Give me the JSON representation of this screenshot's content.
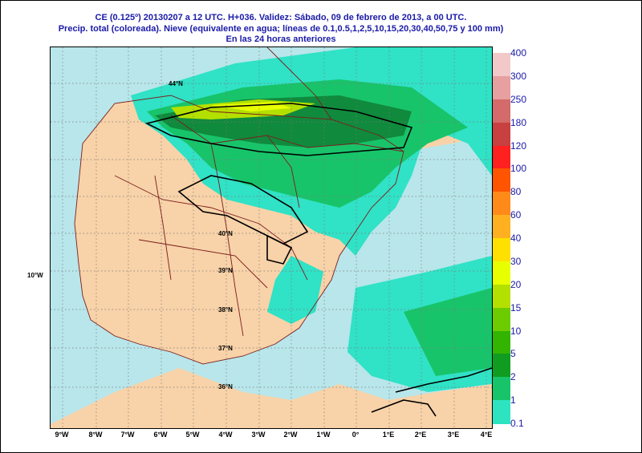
{
  "title": {
    "line1": "CE (0.125º) 20130207 a 12 UTC.  H+036.  Validez: Sábado, 09 de febrero de 2013,  a  00 UTC.",
    "line2": "Precip. total (coloreada). Nieve (equivalente en agua; líneas de 0.1,0.5,1,2,5,10,15,20,30,40,50,75 y 100 mm)",
    "line3": "En las 24 horas anteriores"
  },
  "lon_labels": [
    "9°W",
    "8°W",
    "7°W",
    "6°W",
    "5°W",
    "4°W",
    "3°W",
    "2°W",
    "1°W",
    "0°",
    "1°E",
    "2°E",
    "3°E",
    "4°E"
  ],
  "lat_labels": [
    "44°N",
    "40°N",
    "39°N",
    "38°N",
    "37°N",
    "36°N"
  ],
  "side_label": "10°W",
  "legend": {
    "labels": [
      "400",
      "300",
      "250",
      "180",
      "120",
      "100",
      "80",
      "60",
      "40",
      "30",
      "20",
      "15",
      "10",
      "5",
      "2",
      "1",
      "0.1"
    ],
    "colors": [
      "#f2c8c8",
      "#e6a0a0",
      "#d46a6a",
      "#c84040",
      "#ff2020",
      "#ff5500",
      "#ff8a1a",
      "#ffb020",
      "#ffe000",
      "#e8ff00",
      "#b4e000",
      "#6ccc00",
      "#32b400",
      "#109c20",
      "#18c46a",
      "#2ee4c0",
      "#b4e6ea"
    ]
  },
  "colors": {
    "sea": "#b8e6ea",
    "land_dry": "#f8d2a8",
    "precip_light": "#30e2c6",
    "precip_med": "#18c46a",
    "precip_heavy": "#108a3c",
    "title_text": "#1a1aa8"
  }
}
